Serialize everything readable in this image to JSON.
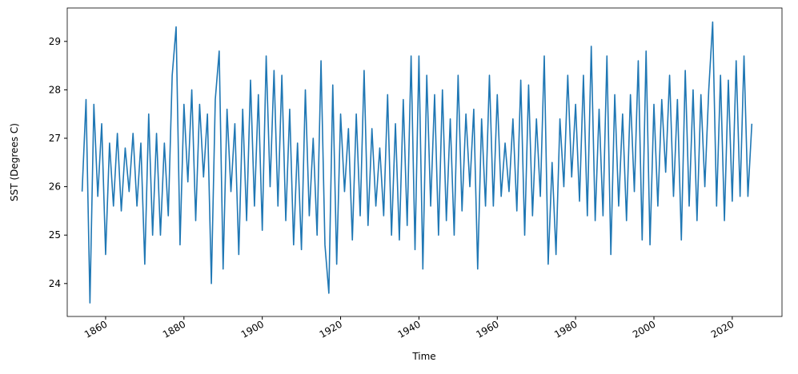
{
  "chart_data": {
    "type": "line",
    "xlabel": "Time",
    "ylabel": "SST (Degrees C)",
    "color": "#1f77b4",
    "x": [
      1854,
      1855,
      1856,
      1857,
      1858,
      1859,
      1860,
      1861,
      1862,
      1863,
      1864,
      1865,
      1866,
      1867,
      1868,
      1869,
      1870,
      1871,
      1872,
      1873,
      1874,
      1875,
      1876,
      1877,
      1878,
      1879,
      1880,
      1881,
      1882,
      1883,
      1884,
      1885,
      1886,
      1887,
      1888,
      1889,
      1890,
      1891,
      1892,
      1893,
      1894,
      1895,
      1896,
      1897,
      1898,
      1899,
      1900,
      1901,
      1902,
      1903,
      1904,
      1905,
      1906,
      1907,
      1908,
      1909,
      1910,
      1911,
      1912,
      1913,
      1914,
      1915,
      1916,
      1917,
      1918,
      1919,
      1920,
      1921,
      1922,
      1923,
      1924,
      1925,
      1926,
      1927,
      1928,
      1929,
      1930,
      1931,
      1932,
      1933,
      1934,
      1935,
      1936,
      1937,
      1938,
      1939,
      1940,
      1941,
      1942,
      1943,
      1944,
      1945,
      1946,
      1947,
      1948,
      1949,
      1950,
      1951,
      1952,
      1953,
      1954,
      1955,
      1956,
      1957,
      1958,
      1959,
      1960,
      1961,
      1962,
      1963,
      1964,
      1965,
      1966,
      1967,
      1968,
      1969,
      1970,
      1971,
      1972,
      1973,
      1974,
      1975,
      1976,
      1977,
      1978,
      1979,
      1980,
      1981,
      1982,
      1983,
      1984,
      1985,
      1986,
      1987,
      1988,
      1989,
      1990,
      1991,
      1992,
      1993,
      1994,
      1995,
      1996,
      1997,
      1998,
      1999,
      2000,
      2001,
      2002,
      2003,
      2004,
      2005,
      2006,
      2007,
      2008,
      2009,
      2010,
      2011,
      2012,
      2013,
      2014,
      2015,
      2016,
      2017,
      2018,
      2019,
      2020,
      2021,
      2022,
      2023,
      2024,
      2025
    ],
    "values": [
      25.9,
      27.8,
      23.6,
      27.7,
      25.8,
      27.3,
      24.6,
      26.9,
      25.6,
      27.1,
      25.5,
      26.8,
      25.9,
      27.1,
      25.6,
      26.9,
      24.4,
      27.5,
      25.0,
      27.1,
      25.0,
      26.9,
      25.4,
      28.3,
      29.3,
      24.8,
      27.7,
      26.1,
      28.0,
      25.3,
      27.7,
      26.2,
      27.5,
      24.0,
      27.8,
      28.8,
      24.3,
      27.6,
      25.9,
      27.3,
      24.6,
      27.6,
      25.3,
      28.2,
      25.6,
      27.9,
      25.1,
      28.7,
      26.0,
      28.4,
      25.6,
      28.3,
      25.3,
      27.6,
      24.8,
      26.9,
      24.7,
      28.0,
      25.4,
      27.0,
      25.0,
      28.6,
      24.8,
      23.8,
      28.1,
      24.4,
      27.5,
      25.9,
      27.2,
      24.9,
      27.5,
      25.4,
      28.4,
      25.2,
      27.2,
      25.6,
      26.8,
      25.4,
      27.9,
      25.0,
      27.3,
      24.9,
      27.8,
      25.2,
      28.7,
      24.7,
      28.7,
      24.3,
      28.3,
      25.6,
      27.9,
      25.0,
      28.0,
      25.3,
      27.4,
      25.0,
      28.3,
      25.5,
      27.5,
      26.0,
      27.6,
      24.3,
      27.4,
      25.6,
      28.3,
      25.6,
      27.9,
      25.8,
      26.9,
      25.9,
      27.4,
      25.5,
      28.2,
      25.0,
      28.1,
      25.4,
      27.4,
      25.8,
      28.7,
      24.4,
      26.5,
      24.6,
      27.4,
      26.0,
      28.3,
      26.2,
      27.7,
      25.7,
      28.3,
      25.4,
      28.9,
      25.3,
      27.6,
      25.4,
      28.7,
      24.6,
      27.9,
      25.6,
      27.5,
      25.3,
      27.9,
      25.9,
      28.6,
      24.9,
      28.8,
      24.8,
      27.7,
      25.6,
      27.8,
      26.3,
      28.3,
      25.8,
      27.8,
      24.9,
      28.4,
      25.6,
      28.0,
      25.3,
      27.9,
      26.0,
      28.0,
      29.4,
      25.6,
      28.3,
      25.3,
      28.2,
      25.7,
      28.6,
      25.8,
      28.7,
      25.8,
      27.3
    ],
    "xlim": [
      1850.2,
      2032.7
    ],
    "xticks": [
      1860,
      1880,
      1900,
      1920,
      1940,
      1960,
      1980,
      2000,
      2020
    ],
    "ylim": [
      23.32,
      29.69
    ],
    "yticks": [
      24,
      25,
      26,
      27,
      28,
      29
    ]
  }
}
